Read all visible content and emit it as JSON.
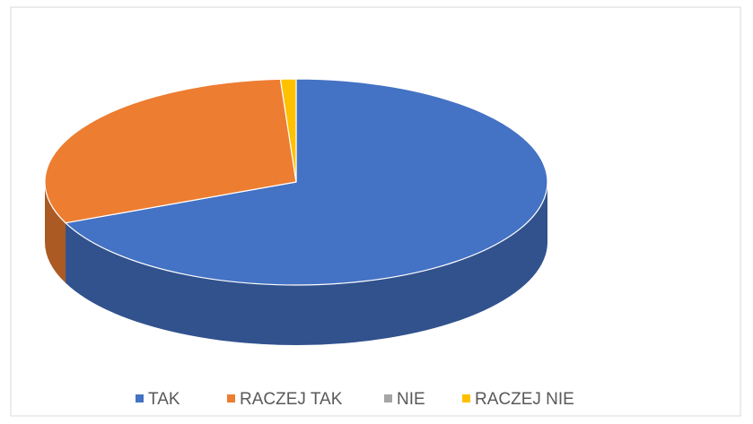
{
  "chart_data": {
    "type": "pie3d",
    "categories": [
      "TAK",
      "RACZEJ TAK",
      "NIE",
      "RACZEJ NIE"
    ],
    "values": [
      68.5,
      30.5,
      0,
      1
    ],
    "colors": [
      "#4472c4",
      "#ed7d31",
      "#a5a5a5",
      "#ffc000"
    ],
    "legend": "bottom"
  }
}
